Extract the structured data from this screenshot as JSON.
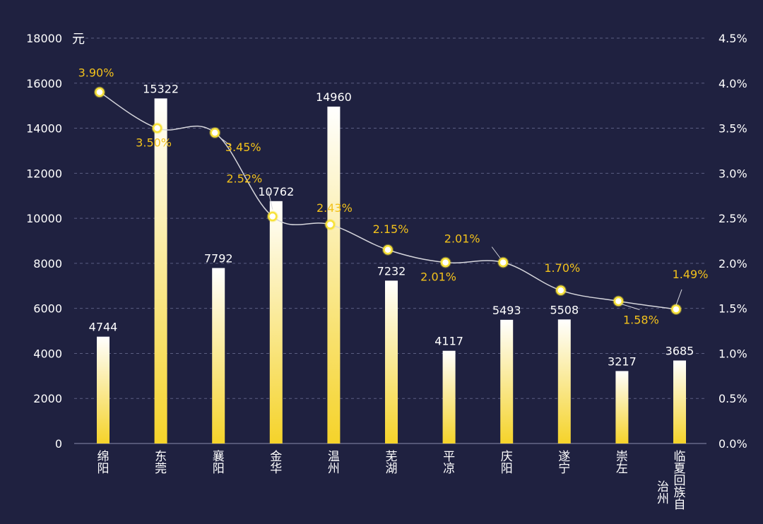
{
  "chart_data": {
    "type": "bar",
    "unit_label": "元",
    "categories": [
      "绵阳",
      "东莞",
      "襄阳",
      "金华",
      "温州",
      "芜湖",
      "平凉",
      "庆阳",
      "遂宁",
      "崇左",
      "临夏回族自治州"
    ],
    "category_lines": [
      [
        "绵",
        "阳"
      ],
      [
        "东",
        "莞"
      ],
      [
        "襄",
        "阳"
      ],
      [
        "金",
        "华"
      ],
      [
        "温",
        "州"
      ],
      [
        "芜",
        "湖"
      ],
      [
        "平",
        "凉"
      ],
      [
        "庆",
        "阳"
      ],
      [
        "遂",
        "宁"
      ],
      [
        "崇",
        "左"
      ],
      [
        "临",
        "夏",
        "回",
        "族",
        "自"
      ]
    ],
    "category_extra": "治州",
    "series": [
      {
        "type": "bar",
        "values": [
          4744,
          15322,
          7792,
          10762,
          14960,
          7232,
          4117,
          5493,
          5508,
          3217,
          3685
        ],
        "labels": [
          "4744",
          "15322",
          "7792",
          "10762",
          "14960",
          "7232",
          "4117",
          "5493",
          "5508",
          "3217",
          "3685"
        ]
      },
      {
        "type": "line",
        "axis": "right",
        "values": [
          3.9,
          3.5,
          3.45,
          2.52,
          2.43,
          2.15,
          2.01,
          2.01,
          1.7,
          1.58,
          1.49
        ],
        "labels": [
          "3.90%",
          "3.50%",
          "3.45%",
          "2.52%",
          "2.43%",
          "2.15%",
          "2.01%",
          "2.01%",
          "1.70%",
          "1.58%",
          "1.49%"
        ]
      }
    ],
    "y_left": {
      "range": [
        0,
        18000
      ],
      "ticks": [
        "0",
        "2000",
        "4000",
        "6000",
        "8000",
        "10000",
        "12000",
        "14000",
        "16000",
        "18000"
      ]
    },
    "y_right": {
      "range": [
        0,
        4.5
      ],
      "ticks": [
        "0.0%",
        "0.5%",
        "1.0%",
        "1.5%",
        "2.0%",
        "2.5%",
        "3.0%",
        "3.5%",
        "4.0%",
        "4.5%"
      ]
    },
    "grid": true,
    "colors": {
      "background": "#1f2140",
      "bar_top": "#ffffff",
      "bar_bottom": "#f5d32a",
      "line": "#d6d6dc",
      "marker": "#f7e23a",
      "line_label": "#f3c21b",
      "text": "#ffffff",
      "grid": "#5b5e82"
    }
  }
}
